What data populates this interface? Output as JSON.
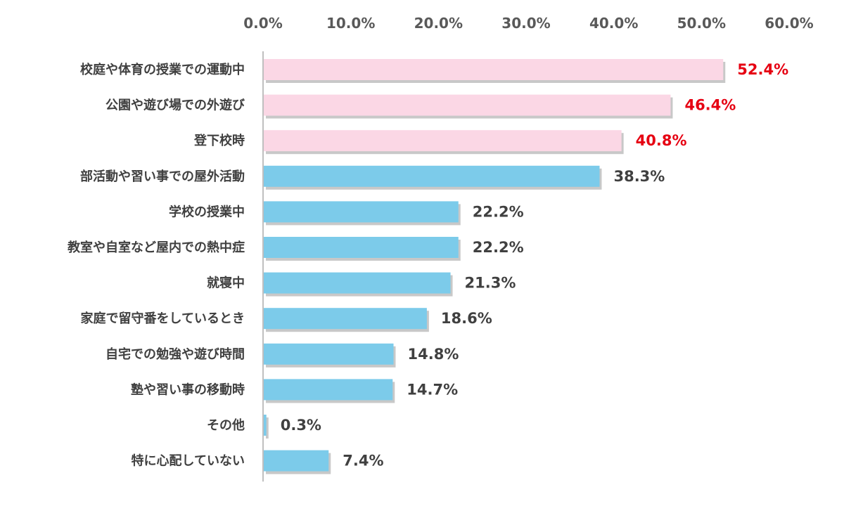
{
  "chart_data": {
    "type": "bar",
    "orientation": "horizontal",
    "title": "",
    "xlabel": "",
    "ylabel": "",
    "xlim": [
      0,
      60
    ],
    "x_ticks": [
      "0.0%",
      "10.0%",
      "20.0%",
      "30.0%",
      "40.0%",
      "50.0%",
      "60.0%"
    ],
    "x_tick_values": [
      0,
      10,
      20,
      30,
      40,
      50,
      60
    ],
    "axis_position": "top",
    "grid": false,
    "legend": "none",
    "categories": [
      "校庭や体育の授業での運動中",
      "公園や遊び場での外遊び",
      "登下校時",
      "部活動や習い事での屋外活動",
      "学校の授業中",
      "教室や自室など屋内での熱中症",
      "就寝中",
      "家庭で留守番をしているとき",
      "自宅での勉強や遊び時間",
      "塾や習い事の移動時",
      "その他",
      "特に心配していない"
    ],
    "values": [
      52.4,
      46.4,
      40.8,
      38.3,
      22.2,
      22.2,
      21.3,
      18.6,
      14.8,
      14.7,
      0.3,
      7.4
    ],
    "value_labels": [
      "52.4%",
      "46.4%",
      "40.8%",
      "38.3%",
      "22.2%",
      "22.2%",
      "21.3%",
      "18.6%",
      "14.8%",
      "14.7%",
      "0.3%",
      "7.4%"
    ],
    "highlight_count": 3,
    "colors": {
      "highlight_bar": "#fbd7e5",
      "normal_bar": "#7ccbea",
      "highlight_label": "#e60012",
      "normal_label": "#404040",
      "axis_line": "#bfbfbf",
      "shadow": "#c8c8c8"
    }
  }
}
